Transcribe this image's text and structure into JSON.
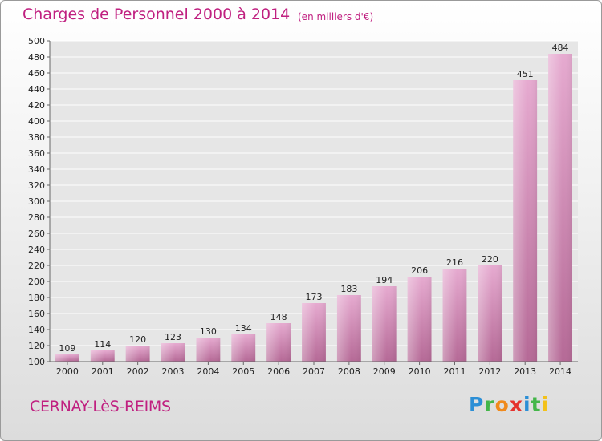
{
  "header": {
    "title": "Charges de Personnel 2000 à 2014",
    "subtitle": "(en milliers d'€)"
  },
  "footer": {
    "place": "CERNAY-LèS-REIMS",
    "logo": [
      "P",
      "r",
      "o",
      "x",
      "i",
      "t",
      "i"
    ]
  },
  "colors": {
    "accent": "#c02080",
    "bar_light": "#e2a4c9",
    "bar_dark": "#b86a98"
  },
  "chart_data": {
    "type": "bar",
    "title": "Charges de Personnel 2000 à 2014",
    "subtitle": "(en milliers d'€)",
    "categories": [
      "2000",
      "2001",
      "2002",
      "2003",
      "2004",
      "2005",
      "2006",
      "2007",
      "2008",
      "2009",
      "2010",
      "2011",
      "2012",
      "2013",
      "2014"
    ],
    "values": [
      109,
      114,
      120,
      123,
      130,
      134,
      148,
      173,
      183,
      194,
      206,
      216,
      220,
      451,
      484
    ],
    "ylim": [
      100,
      500
    ],
    "yticks": [
      100,
      120,
      140,
      160,
      180,
      200,
      220,
      240,
      260,
      280,
      300,
      320,
      340,
      360,
      380,
      400,
      420,
      440,
      460,
      480,
      500
    ],
    "grid": true
  }
}
